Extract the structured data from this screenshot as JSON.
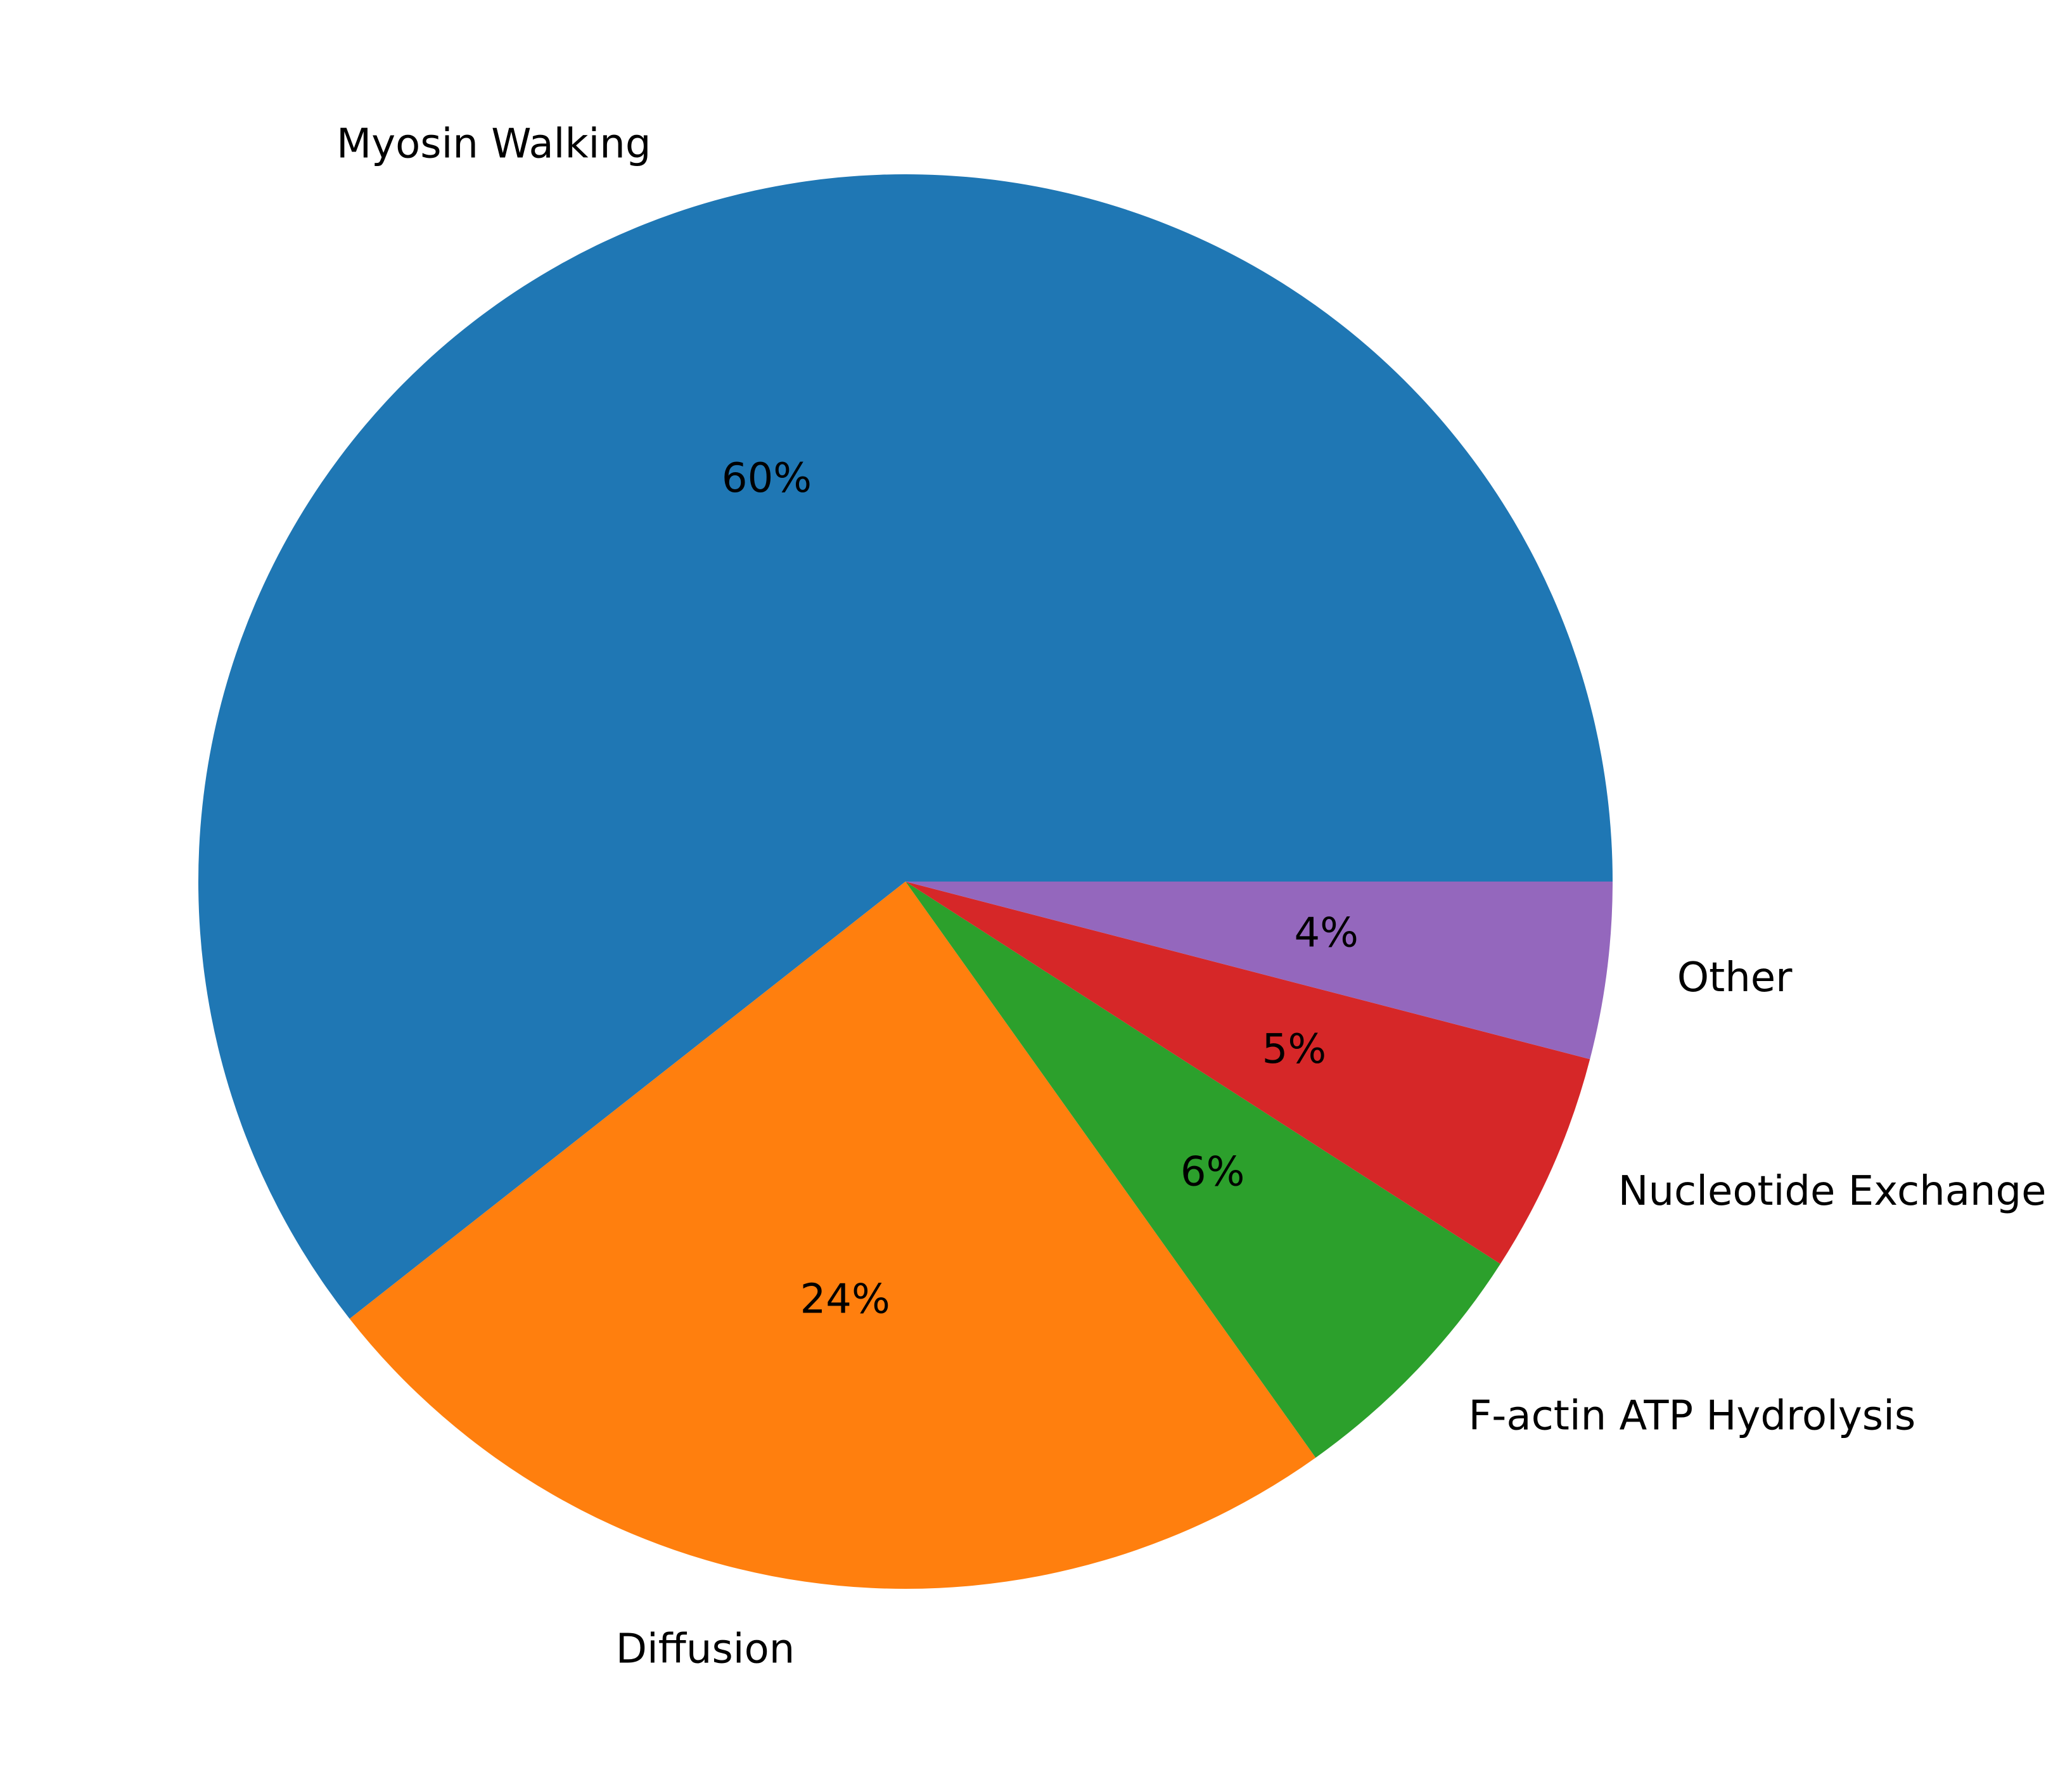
{
  "chart_data": {
    "type": "pie",
    "categories": [
      "Myosin Walking",
      "Diffusion",
      "F-actin ATP Hydrolysis",
      "Nucleotide Exchange",
      "Other"
    ],
    "values": [
      60,
      24,
      6,
      5,
      4
    ],
    "value_labels": [
      "60%",
      "24%",
      "6%",
      "5%",
      "4%"
    ],
    "colors": [
      "#1f77b4",
      "#ff7f0e",
      "#2ca02c",
      "#d62728",
      "#9467bd"
    ],
    "start_angle": 0,
    "direction": "counterclockwise"
  }
}
